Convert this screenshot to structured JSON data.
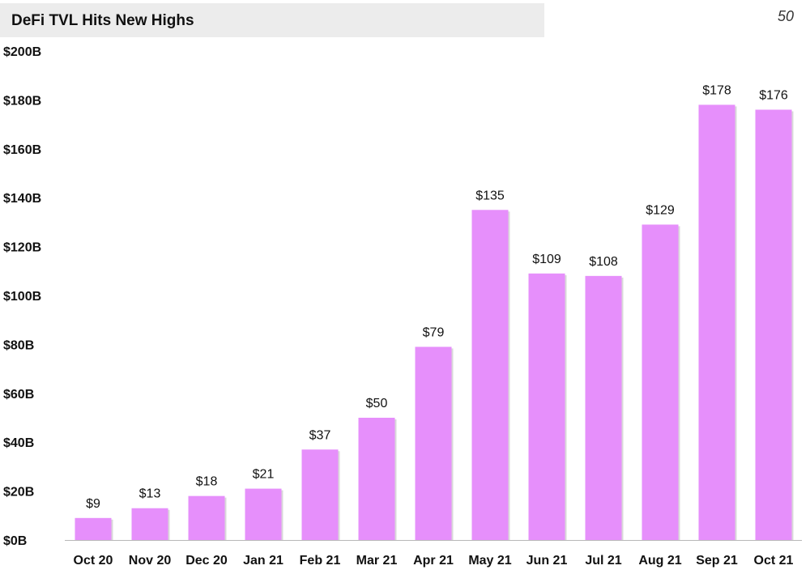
{
  "page": {
    "title": "DeFi TVL Hits New Highs",
    "page_number": "50"
  },
  "colors": {
    "bar": "#e68ffb",
    "bar_shadow": "#d9d9d9",
    "baseline": "#b8b8b8",
    "title_background": "#ececec"
  },
  "chart_data": {
    "type": "bar",
    "title": "DeFi TVL Hits New Highs",
    "xlabel": "",
    "ylabel": "",
    "categories": [
      "Oct 20",
      "Nov 20",
      "Dec 20",
      "Jan 21",
      "Feb 21",
      "Mar 21",
      "Apr 21",
      "May 21",
      "Jun 21",
      "Jul 21",
      "Aug 21",
      "Sep 21",
      "Oct 21"
    ],
    "values": [
      9,
      13,
      18,
      21,
      37,
      50,
      79,
      135,
      109,
      108,
      129,
      178,
      176
    ],
    "value_labels": [
      "$9",
      "$13",
      "$18",
      "$21",
      "$37",
      "$50",
      "$79",
      "$135",
      "$109",
      "$108",
      "$129",
      "$178",
      "$176"
    ],
    "ylim": [
      0,
      200
    ],
    "y_ticks": [
      0,
      20,
      40,
      60,
      80,
      100,
      120,
      140,
      160,
      180,
      200
    ],
    "y_tick_labels": [
      "$0B",
      "$20B",
      "$40B",
      "$60B",
      "$80B",
      "$100B",
      "$120B",
      "$140B",
      "$160B",
      "$180B",
      "$200B"
    ],
    "grid": false,
    "legend": "none"
  }
}
